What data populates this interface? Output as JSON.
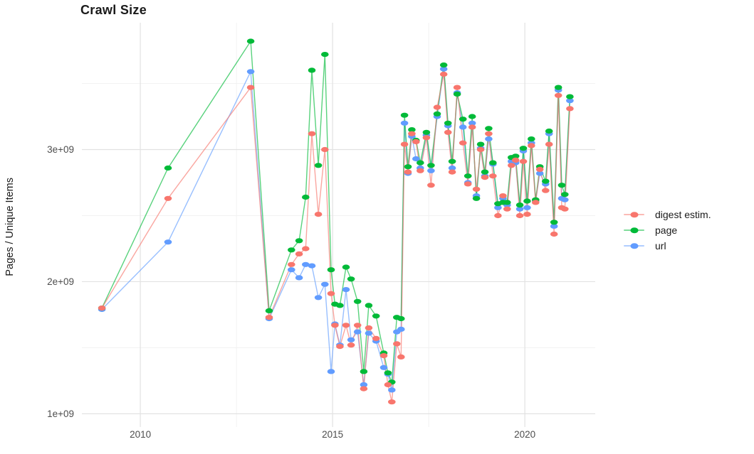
{
  "title": "Crawl Size",
  "y_axis_title": "Pages / Unique Items",
  "x_tick_labels": [
    "2010",
    "2015",
    "2020"
  ],
  "y_tick_labels": [
    "1e+09",
    "2e+09",
    "3e+09"
  ],
  "legend": {
    "items": [
      {
        "label": "digest estim.",
        "color": "#F8766D"
      },
      {
        "label": "page",
        "color": "#00BA38"
      },
      {
        "label": "url",
        "color": "#619CFF"
      }
    ]
  },
  "colors": {
    "grid_major": "#E2E2E2",
    "grid_minor": "#F0F0F0",
    "tick_text": "#4D4D4D",
    "title_text": "#1A1A1A",
    "background": "#FFFFFF"
  },
  "chart_data": {
    "type": "line",
    "title": "Crawl Size",
    "xlabel": "",
    "ylabel": "Pages / Unique Items",
    "unit": "series values are in billions (1e9) of pages / unique items",
    "grid": true,
    "legend_position": "right-middle",
    "point_style": "filled ellipse markers on thin solid lines",
    "xlim": [
      2008.48,
      2021.83
    ],
    "ylim": [
      0.9,
      3.96
    ],
    "x_ticks": [
      2010,
      2015,
      2020
    ],
    "x_minor_ticks": [
      2012.5,
      2017.5
    ],
    "y_ticks": [
      1,
      2,
      3
    ],
    "y_minor_ticks": [
      1.5,
      2.5,
      3.5
    ],
    "x": [
      2009.0,
      2010.72,
      2012.87,
      2013.35,
      2013.93,
      2014.13,
      2014.3,
      2014.46,
      2014.63,
      2014.8,
      2014.96,
      2015.06,
      2015.19,
      2015.35,
      2015.48,
      2015.65,
      2015.81,
      2015.94,
      2016.13,
      2016.33,
      2016.44,
      2016.54,
      2016.67,
      2016.78,
      2016.87,
      2016.96,
      2017.06,
      2017.17,
      2017.28,
      2017.44,
      2017.56,
      2017.72,
      2017.89,
      2018.0,
      2018.11,
      2018.24,
      2018.39,
      2018.52,
      2018.63,
      2018.74,
      2018.85,
      2018.96,
      2019.06,
      2019.17,
      2019.3,
      2019.43,
      2019.54,
      2019.65,
      2019.76,
      2019.87,
      2019.96,
      2020.06,
      2020.17,
      2020.28,
      2020.39,
      2020.54,
      2020.63,
      2020.76,
      2020.87,
      2020.96,
      2021.04,
      2021.17
    ],
    "series": [
      {
        "name": "digest estim.",
        "color": "#F8766D",
        "values": [
          1.8,
          2.63,
          3.47,
          1.73,
          2.13,
          2.21,
          2.25,
          3.12,
          2.51,
          3.0,
          1.91,
          1.67,
          1.51,
          1.67,
          1.52,
          1.67,
          1.19,
          1.65,
          1.57,
          1.44,
          1.22,
          1.09,
          1.53,
          1.43,
          3.04,
          2.83,
          3.12,
          3.06,
          2.84,
          3.09,
          2.73,
          3.32,
          3.57,
          3.13,
          2.83,
          3.47,
          3.05,
          2.74,
          3.17,
          2.7,
          3.0,
          2.79,
          3.12,
          2.8,
          2.5,
          2.65,
          2.55,
          2.88,
          2.92,
          2.5,
          2.91,
          2.51,
          3.03,
          2.6,
          2.85,
          2.69,
          3.04,
          2.36,
          3.41,
          2.56,
          2.55,
          3.31
        ]
      },
      {
        "name": "page",
        "color": "#00BA38",
        "values": [
          1.8,
          2.86,
          3.82,
          1.78,
          2.24,
          2.31,
          2.64,
          3.6,
          2.88,
          3.72,
          2.09,
          1.83,
          1.82,
          2.11,
          2.02,
          1.85,
          1.32,
          1.82,
          1.74,
          1.46,
          1.31,
          1.24,
          1.73,
          1.72,
          3.26,
          2.87,
          3.15,
          3.07,
          2.9,
          3.13,
          2.88,
          3.27,
          3.64,
          3.2,
          2.91,
          3.42,
          3.23,
          2.8,
          3.25,
          2.63,
          3.04,
          2.83,
          3.16,
          2.9,
          2.59,
          2.6,
          2.6,
          2.94,
          2.95,
          2.58,
          3.01,
          2.61,
          3.08,
          2.62,
          2.87,
          2.76,
          3.14,
          2.45,
          3.47,
          2.73,
          2.66,
          3.4
        ]
      },
      {
        "name": "url",
        "color": "#619CFF",
        "values": [
          1.79,
          2.3,
          3.59,
          1.72,
          2.09,
          2.03,
          2.13,
          2.12,
          1.88,
          1.98,
          1.32,
          1.68,
          1.52,
          1.94,
          1.56,
          1.62,
          1.22,
          1.61,
          1.55,
          1.35,
          1.3,
          1.18,
          1.62,
          1.64,
          3.2,
          2.82,
          3.1,
          2.93,
          2.86,
          3.11,
          2.84,
          3.25,
          3.61,
          3.18,
          2.86,
          3.43,
          3.17,
          2.75,
          3.2,
          2.65,
          3.01,
          2.8,
          3.08,
          2.89,
          2.56,
          2.63,
          2.58,
          2.91,
          2.9,
          2.55,
          2.99,
          2.56,
          3.05,
          2.61,
          2.82,
          2.74,
          3.12,
          2.42,
          3.45,
          2.63,
          2.62,
          3.37
        ]
      }
    ]
  }
}
